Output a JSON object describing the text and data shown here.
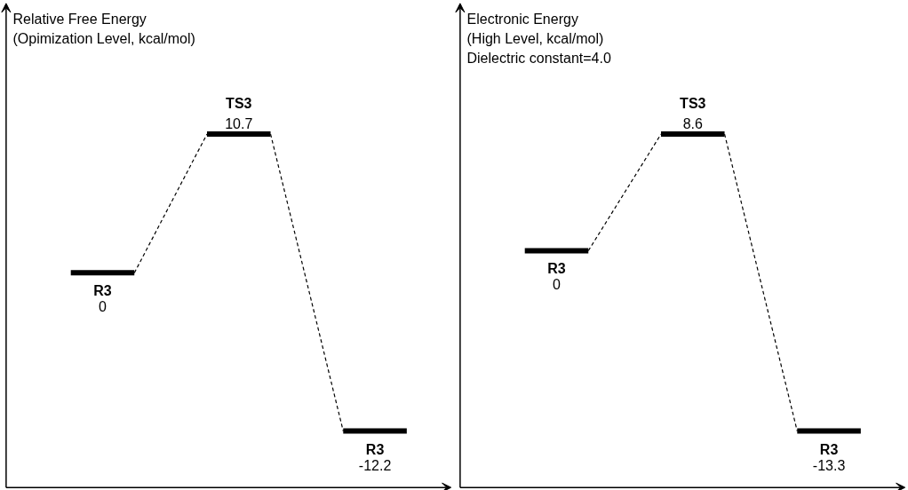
{
  "chart_data": [
    {
      "type": "other",
      "title": "Relative Free Energy",
      "subtitle": "(Opimization Level, kcal/mol)",
      "categories": [
        "R3",
        "TS3",
        "R3"
      ],
      "values": [
        0,
        10.7,
        -12.2
      ],
      "data_labels": true
    },
    {
      "type": "other",
      "title": "Electronic Energy",
      "subtitle": "(High Level, kcal/mol)",
      "annotations": [
        "Dielectric constant=4.0"
      ],
      "categories": [
        "R3",
        "TS3",
        "R3"
      ],
      "values": [
        0,
        8.6,
        -13.3
      ],
      "data_labels": true
    }
  ]
}
